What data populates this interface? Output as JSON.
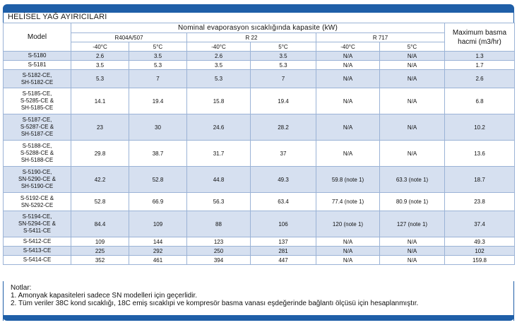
{
  "title": "HELİSEL YAĞ AYIRICILARI",
  "header": {
    "model": "Model",
    "nominal": "Nominal evaporasyon sıcaklığında kapasite (kW)",
    "max": "Maximum basma hacmi (m3/hr)",
    "refrigerants": [
      "R404A/507",
      "R 22",
      "R 717"
    ],
    "temps": [
      "-40°C",
      "5°C",
      "-40°C",
      "5°C",
      "-40°C",
      "5°C"
    ]
  },
  "rows": [
    {
      "model": [
        "S-5180"
      ],
      "values": [
        "2.6",
        "3.5",
        "2.6",
        "3.5",
        "N/A",
        "N/A",
        "1.3"
      ]
    },
    {
      "model": [
        "S-5181"
      ],
      "values": [
        "3.5",
        "5.3",
        "3.5",
        "5.3",
        "N/A",
        "N/A",
        "1.7"
      ]
    },
    {
      "model": [
        "S-5182-CE,",
        "SH-5182-CE"
      ],
      "values": [
        "5.3",
        "7",
        "5.3",
        "7",
        "N/A",
        "N/A",
        "2.6"
      ]
    },
    {
      "model": [
        "S-5185-CE,",
        "S-5285-CE &",
        "SH-5185-CE"
      ],
      "values": [
        "14.1",
        "19.4",
        "15.8",
        "19.4",
        "N/A",
        "N/A",
        "6.8"
      ]
    },
    {
      "model": [
        "S-5187-CE,",
        "S-5287-CE &",
        "SH-5187-CE"
      ],
      "values": [
        "23",
        "30",
        "24.6",
        "28.2",
        "N/A",
        "N/A",
        "10.2"
      ]
    },
    {
      "model": [
        "S-5188-CE,",
        "S-5288-CE &",
        "SH-5188-CE"
      ],
      "values": [
        "29.8",
        "38.7",
        "31.7",
        "37",
        "N/A",
        "N/A",
        "13.6"
      ]
    },
    {
      "model": [
        "S-5190-CE,",
        "SN-5290-CE &",
        "SH-5190-CE"
      ],
      "values": [
        "42.2",
        "52.8",
        "44.8",
        "49.3",
        "59.8 (note 1)",
        "63.3 (note 1)",
        "18.7"
      ]
    },
    {
      "model": [
        "S-5192-CE &",
        "SN-5292-CE"
      ],
      "values": [
        "52.8",
        "66.9",
        "56.3",
        "63.4",
        "77.4 (note 1)",
        "80.9 (note 1)",
        "23.8"
      ]
    },
    {
      "model": [
        "S-5194-CE,",
        "SN-5294-CE &",
        "S-5411-CE"
      ],
      "values": [
        "84.4",
        "109",
        "88",
        "106",
        "120 (note 1)",
        "127 (note 1)",
        "37.4"
      ]
    },
    {
      "model": [
        "S-5412-CE"
      ],
      "values": [
        "109",
        "144",
        "123",
        "137",
        "N/A",
        "N/A",
        "49.3"
      ]
    },
    {
      "model": [
        "S-5413-CE"
      ],
      "values": [
        "225",
        "292",
        "250",
        "281",
        "N/A",
        "N/A",
        "102"
      ]
    },
    {
      "model": [
        "S-5414-CE"
      ],
      "values": [
        "352",
        "461",
        "394",
        "447",
        "N/A",
        "N/A",
        "159.8"
      ]
    }
  ],
  "notes": {
    "heading": "Notlar:",
    "items": [
      "1. Amonyak kapasiteleri sadece SN modelleri için geçerlidir.",
      "2. Tüm veriler 38C kond sıcaklığı, 18C emiş sıcaklıpi ve kompresör basma vanası eşdeğerinde bağlantı ölçüsü için hesaplanmıştır."
    ]
  },
  "colors": {
    "brand": "#1f5fa8",
    "row_shade": "#d6e0f0",
    "grid": "#9bb3d6"
  }
}
